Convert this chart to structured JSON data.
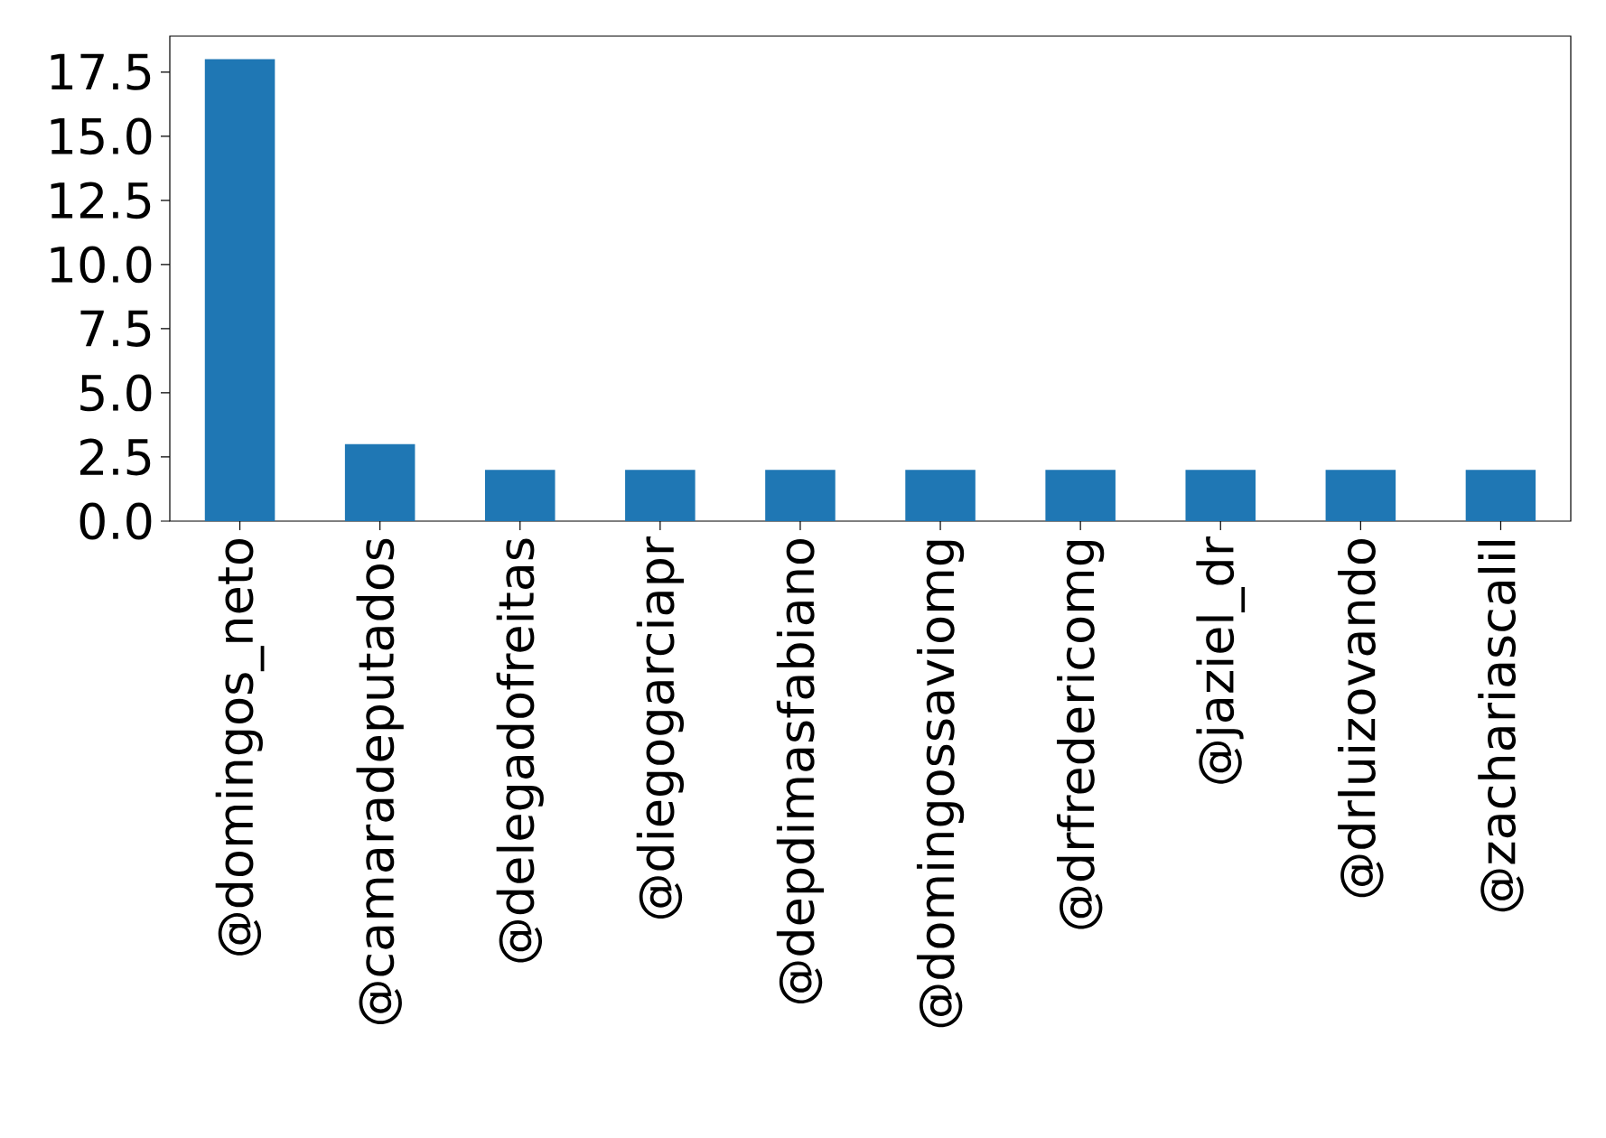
{
  "chart_data": {
    "type": "bar",
    "categories": [
      "@domingos_neto",
      "@camaradeputados",
      "@delegadofreitas",
      "@diegogarciapr",
      "@depdimasfabiano",
      "@domingossaviomg",
      "@drfredericomg",
      "@jaziel_dr",
      "@drluizovando",
      "@zachariascalil"
    ],
    "values": [
      18,
      3,
      2,
      2,
      2,
      2,
      2,
      2,
      2,
      2
    ],
    "color": "#1f77b4",
    "ylim": [
      0,
      18.9
    ],
    "yticks": [
      {
        "value": 0,
        "label": "0.0"
      },
      2.5,
      {
        "value": 5,
        "label": "5.0"
      },
      7.5,
      {
        "value": 10,
        "label": "10.0"
      },
      12.5,
      {
        "value": 15,
        "label": "15.0"
      },
      17.5
    ]
  }
}
